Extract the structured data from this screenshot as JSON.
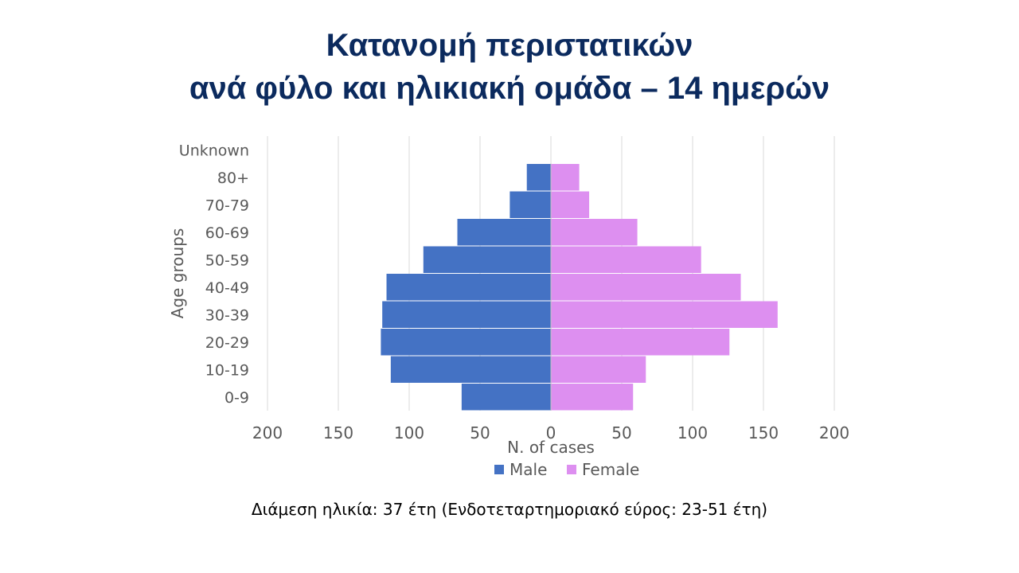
{
  "slide": {
    "title_line1": "Κατανομή περιστατικών",
    "title_line2": "ανά φύλο και ηλικιακή ομάδα – 14 ημερών",
    "note": "Διάμεση ηλικία: 37 έτη (Ενδοτεταρτημοριακό εύρος: 23-51 έτη)"
  },
  "chart_data": {
    "type": "bar",
    "orientation": "horizontal-butterfly",
    "categories": [
      "0-9",
      "10-19",
      "20-29",
      "30-39",
      "40-49",
      "50-59",
      "60-69",
      "70-79",
      "80+",
      "Unknown"
    ],
    "series": [
      {
        "name": "Male",
        "color": "#4472c4",
        "values": [
          63,
          113,
          120,
          119,
          116,
          90,
          66,
          29,
          17,
          0
        ]
      },
      {
        "name": "Female",
        "color": "#dd8ff0",
        "values": [
          58,
          67,
          126,
          160,
          134,
          106,
          61,
          27,
          20,
          0
        ]
      }
    ],
    "xlabel": "N. of cases",
    "ylabel": "Age groups",
    "xlim": [
      -200,
      200
    ],
    "xticks": [
      -200,
      -150,
      -100,
      -50,
      0,
      50,
      100,
      150,
      200
    ],
    "xtick_labels": [
      "200",
      "150",
      "100",
      "50",
      "0",
      "50",
      "100",
      "150",
      "200"
    ],
    "grid": "vertical",
    "legend": "bottom"
  }
}
